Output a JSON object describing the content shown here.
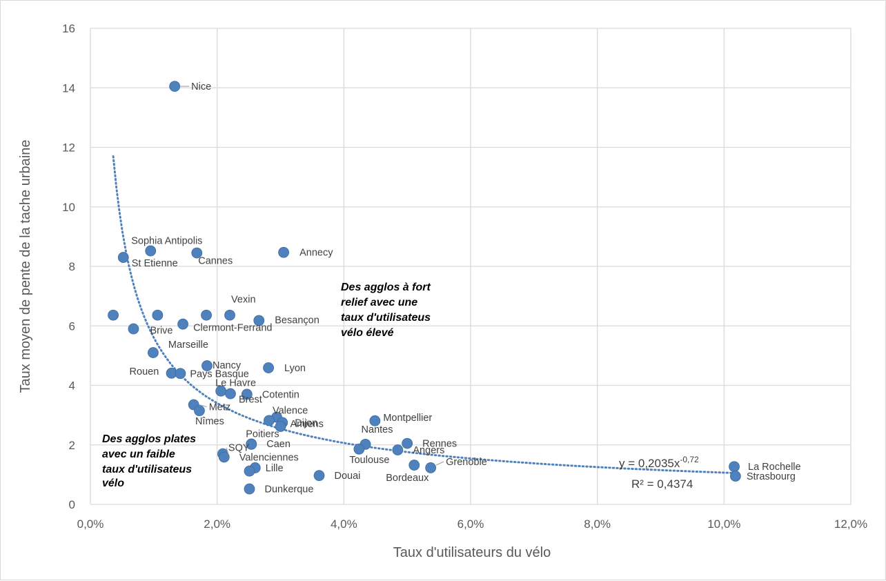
{
  "chart_data": {
    "type": "scatter",
    "xlabel": "Taux d'utilisateurs du vélo",
    "ylabel": "Taux moyen de pente de la tache urbaine",
    "xlim": [
      0,
      12
    ],
    "ylim": [
      0,
      16
    ],
    "x_unit": "%",
    "x_ticks": [
      "0,0%",
      "2,0%",
      "4,0%",
      "6,0%",
      "8,0%",
      "10,0%",
      "12,0%"
    ],
    "y_ticks": [
      "0",
      "2",
      "4",
      "6",
      "8",
      "10",
      "12",
      "14",
      "16"
    ],
    "grid": true,
    "marker_color": "#4f81bd",
    "trendline_color": "#4f81bd",
    "points": [
      {
        "label": "Nice",
        "x": 1.33,
        "y": 14.05
      },
      {
        "label": "Sophia Antipolis",
        "x": 0.95,
        "y": 8.52
      },
      {
        "label": "St Etienne",
        "x": 0.52,
        "y": 8.3
      },
      {
        "label": "Cannes",
        "x": 1.68,
        "y": 8.45
      },
      {
        "label": "Annecy",
        "x": 3.05,
        "y": 8.47
      },
      {
        "label": "",
        "x": 0.36,
        "y": 6.36
      },
      {
        "label": "",
        "x": 1.06,
        "y": 6.36
      },
      {
        "label": "",
        "x": 1.83,
        "y": 6.36
      },
      {
        "label": "Vexin",
        "x": 2.2,
        "y": 6.36
      },
      {
        "label": "Brive",
        "x": 0.68,
        "y": 5.9
      },
      {
        "label": "Clermont-Ferrand",
        "x": 1.46,
        "y": 6.06
      },
      {
        "label": "Besançon",
        "x": 2.66,
        "y": 6.18
      },
      {
        "label": "Marseille",
        "x": 0.99,
        "y": 5.1
      },
      {
        "label": "Nancy",
        "x": 1.84,
        "y": 4.66
      },
      {
        "label": "Lyon",
        "x": 2.81,
        "y": 4.59
      },
      {
        "label": "Rouen",
        "x": 1.28,
        "y": 4.41
      },
      {
        "label": "Pays Basque",
        "x": 1.42,
        "y": 4.4
      },
      {
        "label": "Le Havre",
        "x": 2.06,
        "y": 3.81
      },
      {
        "label": "Brest",
        "x": 2.21,
        "y": 3.72
      },
      {
        "label": "Cotentin",
        "x": 2.47,
        "y": 3.7
      },
      {
        "label": "Metz",
        "x": 1.63,
        "y": 3.35
      },
      {
        "label": "Nîmes",
        "x": 1.72,
        "y": 3.15
      },
      {
        "label": "Valence",
        "x": 2.94,
        "y": 2.93
      },
      {
        "label": "",
        "x": 2.82,
        "y": 2.82
      },
      {
        "label": "Dijon",
        "x": 3.03,
        "y": 2.75
      },
      {
        "label": "Amiens",
        "x": 3.0,
        "y": 2.62
      },
      {
        "label": "Montpellier",
        "x": 4.49,
        "y": 2.81
      },
      {
        "label": "Poitiers",
        "x": 2.54,
        "y": 2.03
      },
      {
        "label": "Caen",
        "x": 2.54,
        "y": 2.02
      },
      {
        "label": "Nantes",
        "x": 4.34,
        "y": 2.02
      },
      {
        "label": "Rennes",
        "x": 5.0,
        "y": 2.05
      },
      {
        "label": "Toulouse",
        "x": 4.24,
        "y": 1.86
      },
      {
        "label": "Angers",
        "x": 4.85,
        "y": 1.83
      },
      {
        "label": "SQY",
        "x": 2.09,
        "y": 1.7
      },
      {
        "label": "Valenciennes",
        "x": 2.11,
        "y": 1.59
      },
      {
        "label": "Grenoble",
        "x": 5.37,
        "y": 1.23
      },
      {
        "label": "Bordeaux",
        "x": 5.11,
        "y": 1.32
      },
      {
        "label": "Lille",
        "x": 2.6,
        "y": 1.23
      },
      {
        "label": "",
        "x": 2.51,
        "y": 1.12
      },
      {
        "label": "Douai",
        "x": 3.61,
        "y": 0.97
      },
      {
        "label": "Dunkerque",
        "x": 2.51,
        "y": 0.52
      },
      {
        "label": "La Rochelle",
        "x": 10.16,
        "y": 1.27
      },
      {
        "label": "Strasbourg",
        "x": 10.18,
        "y": 0.95
      }
    ],
    "trendline": {
      "type": "power",
      "a": 0.2035,
      "b": -0.72,
      "x_from": 0.36,
      "x_to": 10.18
    },
    "equation_text": "y = 0,2035x",
    "equation_exponent": "-0,72",
    "r2_text": "R² = 0,4374",
    "annotations": [
      {
        "lines": [
          "Des agglos à fort",
          "relief avec une",
          "taux d'utilisateus",
          "vélo élevé"
        ]
      },
      {
        "lines": [
          "Des agglos plates",
          "avec un faible",
          "taux d'utilisateus",
          "vélo"
        ]
      }
    ]
  }
}
